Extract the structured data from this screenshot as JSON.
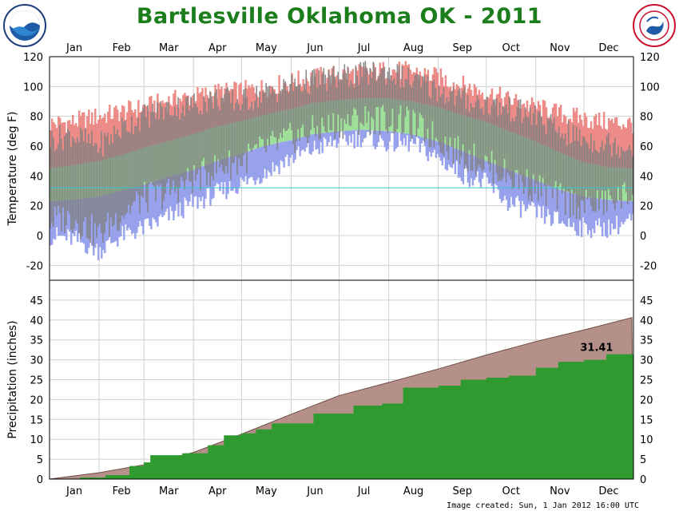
{
  "title": "Bartlesville Oklahoma OK - 2011",
  "footer": "Image created: Sun, 1 Jan 2012 16:00 UTC",
  "logos": {
    "left": "noaa-logo",
    "right": "nws-logo"
  },
  "colors": {
    "title": "#1b7d1b",
    "record_high": "#ec8b87",
    "normal_range": "#9ee09a",
    "record_low": "#98a2ec",
    "actual": "#7f7f7f",
    "normal_precip": "#b49088",
    "actual_precip": "#2f9a2f",
    "freezing_line": "#34c8cc"
  },
  "chart_data": [
    {
      "type": "bar",
      "name": "temperature",
      "ylabel": "Temperature (deg F)",
      "ylim": [
        -30,
        120
      ],
      "yticks": [
        -20,
        0,
        20,
        40,
        60,
        80,
        100,
        120
      ],
      "xticks": [
        "Jan",
        "Feb",
        "Mar",
        "Apr",
        "May",
        "Jun",
        "Jul",
        "Aug",
        "Sep",
        "Oct",
        "Nov",
        "Dec"
      ],
      "grid": true,
      "reference_line": 32,
      "x": [
        "2011-01-01",
        "2011-01-15",
        "2011-02-01",
        "2011-02-15",
        "2011-03-01",
        "2011-03-15",
        "2011-04-01",
        "2011-04-15",
        "2011-05-01",
        "2011-05-15",
        "2011-06-01",
        "2011-06-15",
        "2011-07-01",
        "2011-07-15",
        "2011-08-01",
        "2011-08-15",
        "2011-09-01",
        "2011-09-15",
        "2011-10-01",
        "2011-10-15",
        "2011-11-01",
        "2011-11-15",
        "2011-12-01",
        "2011-12-15",
        "2011-12-31"
      ],
      "series": [
        {
          "values": [
            75,
            76,
            80,
            83,
            86,
            90,
            93,
            96,
            97,
            99,
            103,
            106,
            108,
            109,
            111,
            110,
            106,
            101,
            96,
            91,
            86,
            82,
            78,
            76,
            75
          ]
        },
        {
          "values": [
            45,
            47,
            50,
            54,
            59,
            63,
            68,
            73,
            77,
            81,
            85,
            89,
            91,
            92,
            92,
            90,
            86,
            81,
            76,
            70,
            63,
            56,
            49,
            46,
            45
          ]
        },
        {
          "values": [
            23,
            24,
            26,
            30,
            34,
            39,
            44,
            50,
            55,
            60,
            64,
            68,
            70,
            71,
            70,
            68,
            63,
            57,
            50,
            44,
            37,
            31,
            26,
            24,
            23
          ]
        },
        {
          "values": [
            0,
            -2,
            -10,
            0,
            5,
            12,
            22,
            28,
            35,
            42,
            52,
            58,
            64,
            66,
            62,
            62,
            52,
            42,
            35,
            22,
            15,
            10,
            5,
            5,
            10
          ]
        },
        {
          "values": [
            35,
            30,
            20,
            38,
            45,
            50,
            60,
            65,
            72,
            78,
            85,
            88,
            95,
            98,
            100,
            92,
            85,
            75,
            70,
            65,
            55,
            40,
            35,
            40,
            48
          ]
        },
        {
          "values": [
            10,
            12,
            0,
            15,
            25,
            28,
            38,
            45,
            50,
            58,
            65,
            70,
            75,
            78,
            78,
            75,
            65,
            55,
            48,
            40,
            32,
            25,
            20,
            22,
            28
          ]
        },
        {
          "values": [
            64,
            68,
            60,
            72,
            80,
            85,
            88,
            92,
            90,
            95,
            100,
            104,
            106,
            108,
            110,
            104,
            98,
            92,
            88,
            85,
            80,
            70,
            65,
            62,
            60
          ]
        }
      ]
    },
    {
      "type": "area",
      "name": "precipitation",
      "ylabel": "Precipitation (inches)",
      "ylim": [
        0,
        50
      ],
      "yticks": [
        0,
        5,
        10,
        15,
        20,
        25,
        30,
        35,
        40,
        45
      ],
      "xticks": [
        "Jan",
        "Feb",
        "Mar",
        "Apr",
        "May",
        "Jun",
        "Jul",
        "Aug",
        "Sep",
        "Oct",
        "Nov",
        "Dec"
      ],
      "grid": true,
      "annotation": "31.41",
      "series": [
        {
          "x": [
            "2011-01-01",
            "2011-02-01",
            "2011-03-01",
            "2011-04-01",
            "2011-05-01",
            "2011-06-01",
            "2011-07-01",
            "2011-08-01",
            "2011-09-01",
            "2011-10-01",
            "2011-11-01",
            "2011-12-01",
            "2011-12-31"
          ],
          "values": [
            0,
            1.6,
            3.6,
            6.7,
            11.3,
            16.3,
            21.0,
            24.3,
            27.7,
            31.2,
            34.6,
            37.5,
            40.6
          ]
        },
        {
          "x": [
            "2011-01-01",
            "2011-01-20",
            "2011-02-05",
            "2011-02-20",
            "2011-03-01",
            "2011-03-05",
            "2011-03-25",
            "2011-04-10",
            "2011-04-20",
            "2011-05-01",
            "2011-05-10",
            "2011-05-20",
            "2011-06-15",
            "2011-07-10",
            "2011-07-28",
            "2011-08-10",
            "2011-09-01",
            "2011-09-15",
            "2011-10-01",
            "2011-10-15",
            "2011-11-01",
            "2011-11-15",
            "2011-12-01",
            "2011-12-15",
            "2011-12-31"
          ],
          "values": [
            0,
            0.4,
            1.0,
            3.3,
            4.2,
            6.0,
            6.5,
            8.5,
            11.0,
            11.5,
            12.5,
            14.0,
            16.5,
            18.5,
            19.0,
            23.0,
            23.5,
            25.0,
            25.5,
            26.0,
            28.0,
            29.5,
            30.0,
            31.41,
            31.41
          ]
        }
      ]
    }
  ]
}
